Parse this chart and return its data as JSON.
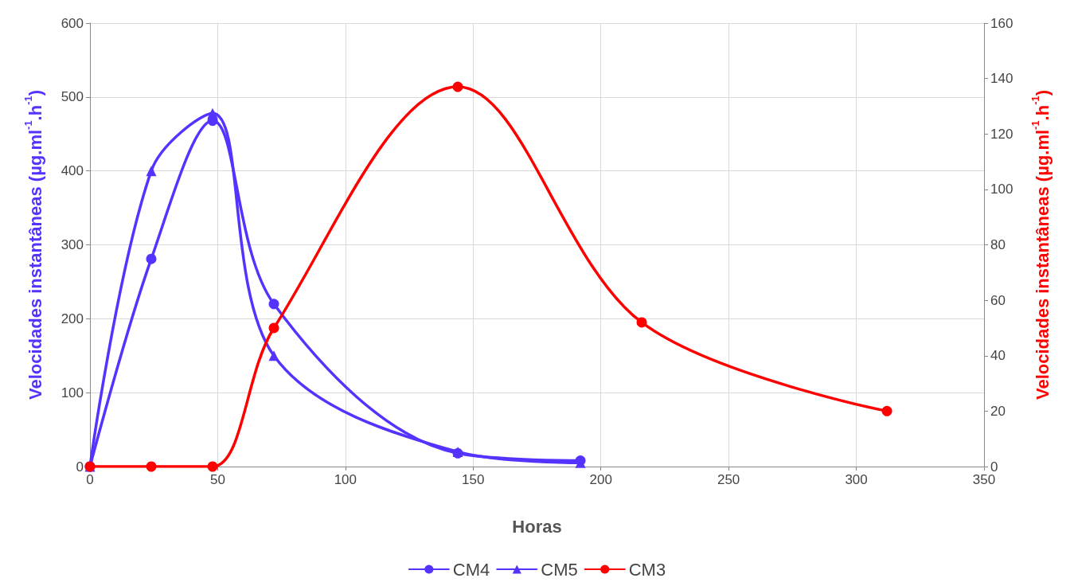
{
  "chart_data": {
    "type": "line",
    "xlabel": "Horas",
    "ylabel": "Velocidades instantâneas (µg.ml$^{-1}$.h$^{-1}$)",
    "y2label": "Velocidades instantâneas (µg.ml$^{-1}$.h$^{-1}$)",
    "series": [
      {
        "name": "CM4",
        "color": "#5533ff",
        "marker": "circle",
        "x": [
          0,
          24,
          48,
          72,
          144,
          192
        ],
        "values": [
          0,
          281,
          468,
          220,
          18,
          8
        ]
      },
      {
        "name": "CM5",
        "color": "#5533ff",
        "marker": "triangle",
        "x": [
          0,
          24,
          48,
          72,
          144,
          192
        ],
        "values": [
          0,
          400,
          478,
          150,
          20,
          5
        ]
      },
      {
        "name": "CM3",
        "color": "#ff0000",
        "marker": "circle",
        "axis": "y2",
        "x": [
          0,
          24,
          48,
          72,
          144,
          216,
          312
        ],
        "values": [
          0,
          0,
          0,
          50,
          137,
          52,
          20
        ]
      }
    ],
    "xlim": [
      0,
      350
    ],
    "xticks": [
      0,
      50,
      100,
      150,
      200,
      250,
      300,
      350
    ],
    "ylim": [
      0,
      600
    ],
    "yticks": [
      0,
      100,
      200,
      300,
      400,
      500,
      600
    ],
    "y2lim": [
      0,
      160
    ],
    "y2ticks": [
      0,
      20,
      40,
      60,
      80,
      100,
      120,
      140,
      160
    ],
    "grid": true,
    "legend": "bottom"
  }
}
